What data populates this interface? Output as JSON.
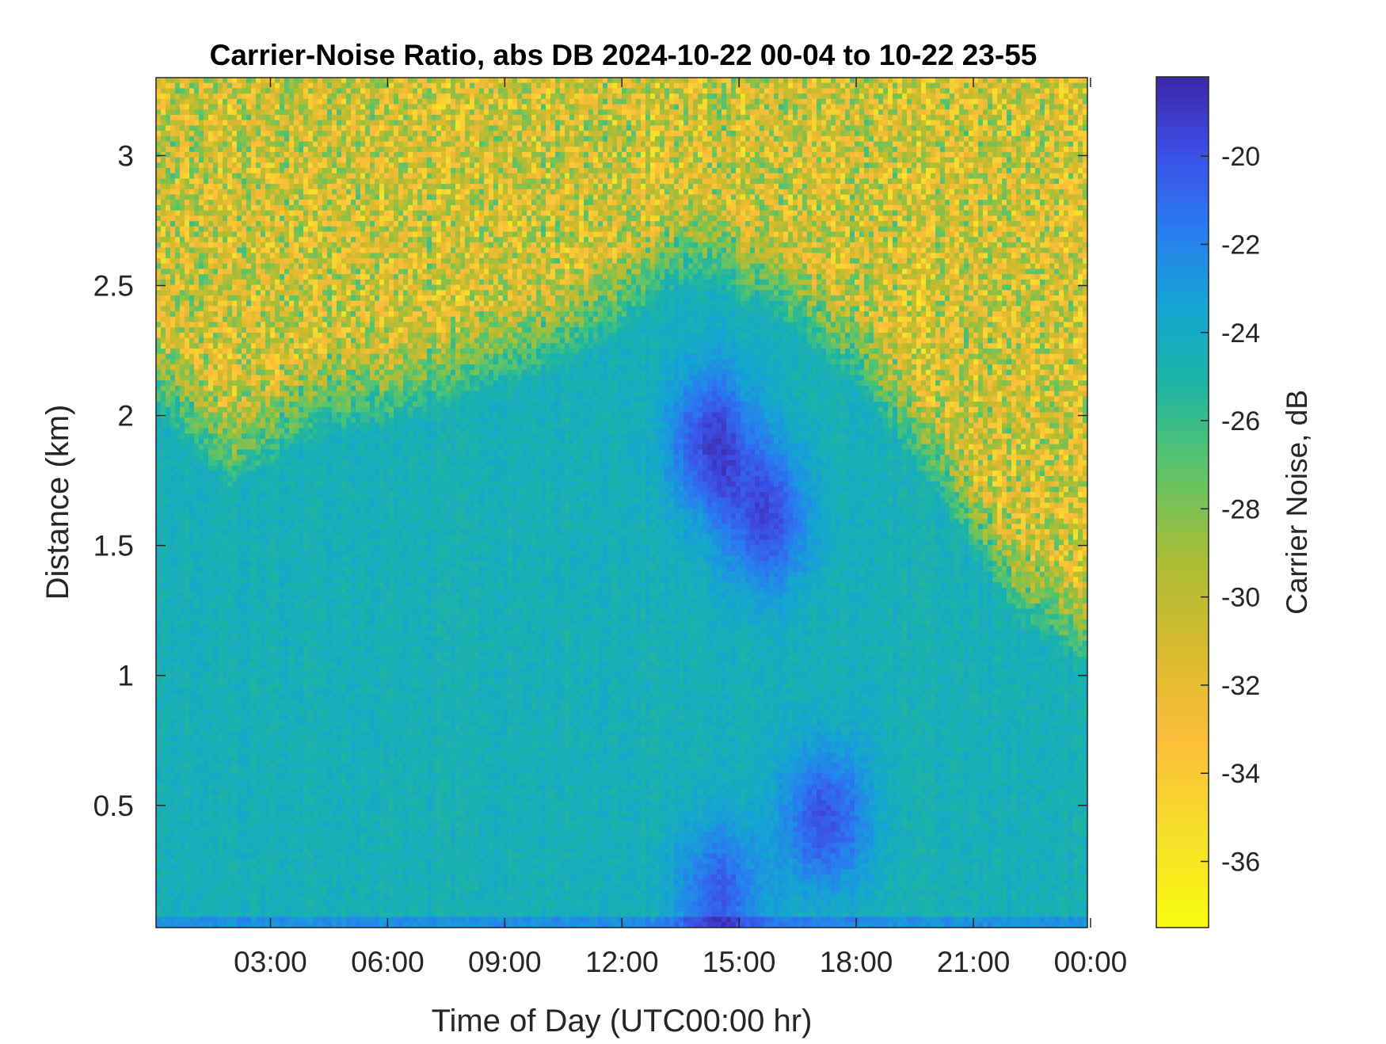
{
  "chart_data": {
    "type": "heatmap",
    "title": "Carrier-Noise Ratio, abs DB 2024-10-22 00-04 to 10-22 23-55",
    "xlabel": "Time of Day (UTC00:00 hr)",
    "ylabel": "Distance (km)",
    "colorbar_label": "Carrier Noise, dB",
    "x_range_hours": [
      0.07,
      23.92
    ],
    "y_range_km": [
      0.03,
      3.3
    ],
    "x_ticks": [
      {
        "hour": 3,
        "label": "03:00"
      },
      {
        "hour": 6,
        "label": "06:00"
      },
      {
        "hour": 9,
        "label": "09:00"
      },
      {
        "hour": 12,
        "label": "12:00"
      },
      {
        "hour": 15,
        "label": "15:00"
      },
      {
        "hour": 18,
        "label": "18:00"
      },
      {
        "hour": 21,
        "label": "21:00"
      },
      {
        "hour": 24,
        "label": "00:00"
      }
    ],
    "y_ticks": [
      {
        "value": 0.5,
        "label": "0.5"
      },
      {
        "value": 1,
        "label": "1"
      },
      {
        "value": 1.5,
        "label": "1.5"
      },
      {
        "value": 2,
        "label": "2"
      },
      {
        "value": 2.5,
        "label": "2.5"
      },
      {
        "value": 3,
        "label": "3"
      }
    ],
    "color_range_db": [
      -37.5,
      -18.2
    ],
    "colorbar_ticks": [
      {
        "value": -20,
        "label": "-20"
      },
      {
        "value": -22,
        "label": "-22"
      },
      {
        "value": -24,
        "label": "-24"
      },
      {
        "value": -26,
        "label": "-26"
      },
      {
        "value": -28,
        "label": "-28"
      },
      {
        "value": -30,
        "label": "-30"
      },
      {
        "value": -32,
        "label": "-32"
      },
      {
        "value": -34,
        "label": "-34"
      },
      {
        "value": -36,
        "label": "-36"
      }
    ],
    "colormap": "parula",
    "grid": false,
    "regions": {
      "noisy_top": {
        "db": -31,
        "spread_db": 4
      },
      "boundary_layer_top_km": [
        [
          0,
          2.0
        ],
        [
          2,
          1.7
        ],
        [
          3,
          1.8
        ],
        [
          4,
          1.9
        ],
        [
          6,
          1.95
        ],
        [
          8,
          2.05
        ],
        [
          10,
          2.15
        ],
        [
          12,
          2.3
        ],
        [
          13,
          2.45
        ],
        [
          14,
          2.5
        ],
        [
          16,
          2.35
        ],
        [
          18,
          2.1
        ],
        [
          20,
          1.7
        ],
        [
          22,
          1.2
        ],
        [
          24,
          1.0
        ]
      ],
      "mixed_layer_db": -24.5,
      "strong_cores": [
        {
          "hour": 14.3,
          "km": 1.9,
          "db": -19.5
        },
        {
          "hour": 15.7,
          "km": 1.6,
          "db": -20
        },
        {
          "hour": 14.5,
          "km": 0.15,
          "db": -20.5
        },
        {
          "hour": 17.2,
          "km": 0.45,
          "db": -20
        }
      ]
    }
  }
}
